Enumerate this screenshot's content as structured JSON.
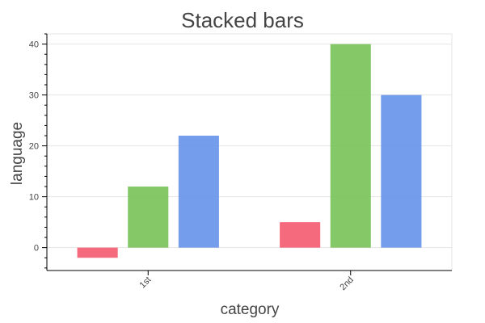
{
  "chart_data": {
    "type": "bar",
    "title": "Stacked bars",
    "xlabel": "category",
    "ylabel": "language",
    "categories": [
      "1st",
      "2nd"
    ],
    "series": [
      {
        "color": "#f45a6e",
        "values": [
          -2,
          5
        ]
      },
      {
        "color": "#78c257",
        "values": [
          12,
          40
        ]
      },
      {
        "color": "#6593ea",
        "values": [
          22,
          30
        ]
      }
    ],
    "ylim": [
      -4.5,
      42
    ],
    "yticks": [
      0,
      10,
      20,
      30,
      40
    ],
    "yminor_step": 2,
    "grid": "horizontal",
    "legend": "none"
  }
}
